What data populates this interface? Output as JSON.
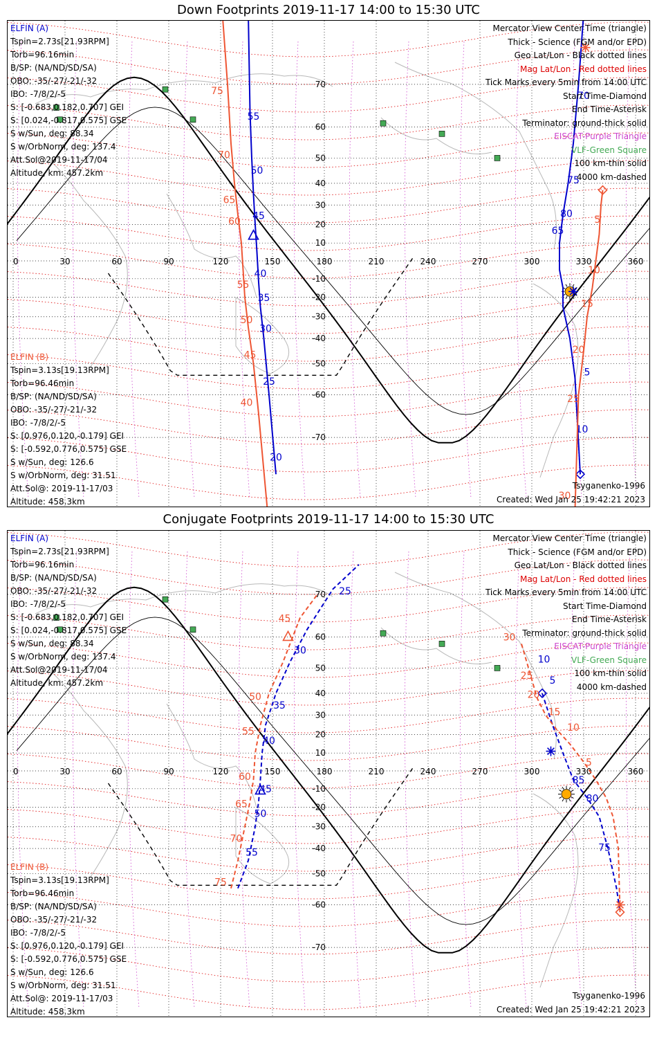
{
  "panels": [
    {
      "title": "Down Footprints 2019-11-17 14:00 to 15:30 UTC",
      "kind": "down"
    },
    {
      "title": "Conjugate Footprints 2019-11-17 14:00 to 15:30 UTC",
      "kind": "conjugate"
    }
  ],
  "elfin_a": {
    "name": "ELFIN (A)",
    "lines": [
      "Tspin=2.73s[21.93RPM]",
      "Torb=96.16min",
      "B/SP: (NA/ND/SD/SA)",
      "OBO: -35/-27/-21/-32",
      "IBO: -7/8/2/-5",
      "S: [-0.683,0.182,0.707] GEI",
      "S: [0.024,-0.817,0.575] GSE",
      "S w/Sun, deg: 88.34",
      "S w/OrbNorm, deg: 137.4",
      "Att.Sol@2019-11-17/04",
      "Altitude, km: 457.2km"
    ]
  },
  "elfin_b": {
    "name": "ELFIN (B)",
    "lines": [
      "Tspin=3.13s[19.13RPM]",
      "Torb=96.46min",
      "B/SP: (NA/ND/SD/SA)",
      "OBO: -35/-27/-21/-32",
      "IBO: -7/8/2/-5",
      "S: [0.976,0.120,-0.179] GEI",
      "S: [-0.592,0.776,0.575] GSE",
      "S w/Sun, deg: 126.6",
      "S w/OrbNorm, deg: 31.51",
      "Att.Sol@: 2019-11-17/03",
      "Altitude: 458.3km"
    ]
  },
  "legend": [
    {
      "text": "Mercator View Center Time (triangle)",
      "color": "#000000"
    },
    {
      "text": "Thick - Science (FGM and/or EPD)",
      "color": "#000000"
    },
    {
      "text": "Geo Lat/Lon - Black dotted lines",
      "color": "#000000"
    },
    {
      "text": "Mag Lat/Lon - Red dotted lines",
      "color": "#dd0000"
    },
    {
      "text": "Tick Marks every 5min from 14:00 UTC",
      "color": "#000000"
    },
    {
      "text": "Start Time-Diamond",
      "color": "#000000"
    },
    {
      "text": "End Time-Asterisk",
      "color": "#000000"
    },
    {
      "text": "Terminator: ground-thick solid",
      "color": "#000000"
    },
    {
      "text": "EISCAT-Purple Triangle",
      "color": "#cc44cc"
    },
    {
      "text": "VLF-Green Square",
      "color": "#44aa55"
    },
    {
      "text": "100 km-thin solid",
      "color": "#000000"
    },
    {
      "text": "4000 km-dashed",
      "color": "#000000"
    }
  ],
  "credit": "Tsyganenko-1996",
  "created": "Created: Wed Jan 25 19:42:21 2023",
  "colors": {
    "elfin_a": "#0000cc",
    "elfin_b": "#ee5533",
    "vlf": "#44aa55",
    "grid_geo": "#000000",
    "grid_mag": "#dd0000"
  },
  "chart_data": [
    {
      "type": "scatter",
      "title": "Down Footprints 2019-11-17 14:00 to 15:30 UTC",
      "projection": "mercator",
      "xlim": [
        0,
        360
      ],
      "ylim": [
        -80,
        80
      ],
      "lon_ticks": [
        0,
        30,
        60,
        90,
        120,
        150,
        180,
        210,
        240,
        270,
        300,
        330,
        360
      ],
      "lat_ticks": [
        70,
        60,
        50,
        40,
        30,
        20,
        10,
        -10,
        -20,
        -30,
        -40,
        -50,
        -60,
        -70
      ],
      "series": [
        {
          "name": "ELFIN (A)",
          "color": "#0000cc",
          "segments": [
            [
              [
                152,
                -76
              ],
              [
                148,
                -60
              ],
              [
                145,
                -40
              ],
              [
                143,
                -25
              ],
              [
                142,
                -12
              ],
              [
                141,
                5
              ],
              [
                140,
                20
              ],
              [
                139,
                35
              ],
              [
                138,
                50
              ],
              [
                137,
                64
              ],
              [
                136,
                80
              ]
            ],
            [
              [
                328,
                -76
              ],
              [
                325,
                -55
              ],
              [
                322,
                -40
              ],
              [
                318,
                -25
              ],
              [
                318,
                -15
              ],
              [
                316,
                -5
              ],
              [
                316,
                10
              ],
              [
                318,
                25
              ],
              [
                321,
                40
              ],
              [
                324,
                55
              ],
              [
                327,
                70
              ],
              [
                330,
                80
              ]
            ]
          ],
          "ticks": [
            {
              "label": "20",
              "lon": 152,
              "lat": -74
            },
            {
              "label": "25",
              "lon": 148,
              "lat": -57
            },
            {
              "label": "30",
              "lon": 146,
              "lat": -37
            },
            {
              "label": "35",
              "lon": 145,
              "lat": -22
            },
            {
              "label": "40",
              "lon": 143,
              "lat": -9
            },
            {
              "label": "45",
              "lon": 142,
              "lat": 23
            },
            {
              "label": "50",
              "lon": 141,
              "lat": 44
            },
            {
              "label": "55",
              "lon": 139,
              "lat": 62
            },
            {
              "label": "5",
              "lon": 332,
              "lat": -54
            },
            {
              "label": "10",
              "lon": 329,
              "lat": -69
            },
            {
              "label": "65",
              "lon": 315,
              "lat": 15
            },
            {
              "label": "80",
              "lon": 320,
              "lat": 24
            },
            {
              "label": "75",
              "lon": 324,
              "lat": 40
            },
            {
              "label": "70",
              "lon": 330,
              "lat": 67
            }
          ]
        },
        {
          "name": "ELFIN (B)",
          "color": "#ee5533",
          "segments": [
            [
              [
                147,
                -80
              ],
              [
                142,
                -65
              ],
              [
                139,
                -50
              ],
              [
                136,
                -35
              ],
              [
                134,
                -20
              ],
              [
                133,
                -5
              ],
              [
                132,
                10
              ],
              [
                130,
                25
              ],
              [
                128,
                40
              ],
              [
                126,
                55
              ],
              [
                124,
                70
              ],
              [
                121,
                80
              ]
            ],
            [
              [
                325,
                -80
              ],
              [
                327,
                -60
              ],
              [
                330,
                -45
              ],
              [
                332,
                -30
              ],
              [
                335,
                -15
              ],
              [
                337,
                0
              ],
              [
                339,
                15
              ],
              [
                340,
                30
              ],
              [
                341,
                37
              ]
            ]
          ],
          "ticks": [
            {
              "label": "40",
              "lon": 135,
              "lat": -63
            },
            {
              "label": "45",
              "lon": 137,
              "lat": -48
            },
            {
              "label": "50",
              "lon": 135,
              "lat": -33
            },
            {
              "label": "55",
              "lon": 133,
              "lat": -15
            },
            {
              "label": "60",
              "lon": 128,
              "lat": 20
            },
            {
              "label": "65",
              "lon": 125,
              "lat": 31
            },
            {
              "label": "70",
              "lon": 122,
              "lat": 50
            },
            {
              "label": "75",
              "lon": 118,
              "lat": 68
            },
            {
              "label": "30",
              "lon": 319,
              "lat": -79
            },
            {
              "label": "25",
              "lon": 324,
              "lat": -62
            },
            {
              "label": "20",
              "lon": 327,
              "lat": -46
            },
            {
              "label": "15",
              "lon": 332,
              "lat": -25
            },
            {
              "label": "10",
              "lon": 336,
              "lat": -7
            },
            {
              "label": "5",
              "lon": 338,
              "lat": 21
            }
          ]
        }
      ],
      "vlf_stations": [
        [
          25,
          65
        ],
        [
          88,
          69
        ],
        [
          27,
          62
        ],
        [
          104,
          62
        ],
        [
          214,
          61
        ],
        [
          248,
          58
        ],
        [
          280,
          50
        ]
      ]
    },
    {
      "type": "scatter",
      "title": "Conjugate Footprints 2019-11-17 14:00 to 15:30 UTC",
      "projection": "mercator",
      "xlim": [
        0,
        360
      ],
      "ylim": [
        -80,
        80
      ],
      "lon_ticks": [
        0,
        30,
        60,
        90,
        120,
        150,
        180,
        210,
        240,
        270,
        300,
        330,
        360
      ],
      "lat_ticks": [
        70,
        60,
        50,
        40,
        30,
        20,
        10,
        -10,
        -20,
        -30,
        -40,
        -50,
        -60,
        -70
      ],
      "series": [
        {
          "name": "ELFIN (A)",
          "color": "#0000cc",
          "segments": [
            [
              [
                130,
                -55
              ],
              [
                136,
                -45
              ],
              [
                140,
                -30
              ],
              [
                142,
                -17
              ],
              [
                143,
                -5
              ],
              [
                144,
                10
              ],
              [
                146,
                25
              ],
              [
                152,
                40
              ],
              [
                160,
                52
              ],
              [
                170,
                62
              ],
              [
                185,
                71
              ],
              [
                200,
                75
              ]
            ],
            [
              [
                306,
                40
              ],
              [
                312,
                25
              ],
              [
                318,
                10
              ],
              [
                324,
                -5
              ],
              [
                332,
                -15
              ],
              [
                339,
                -25
              ],
              [
                344,
                -40
              ],
              [
                349,
                -55
              ],
              [
                351,
                -62
              ]
            ]
          ],
          "ticks": [
            {
              "label": "55",
              "lon": 138,
              "lat": -43
            },
            {
              "label": "50",
              "lon": 143,
              "lat": -25
            },
            {
              "label": "45",
              "lon": 146,
              "lat": -12
            },
            {
              "label": "40",
              "lon": 148,
              "lat": 15
            },
            {
              "label": "35",
              "lon": 154,
              "lat": 33
            },
            {
              "label": "30",
              "lon": 166,
              "lat": 55
            },
            {
              "label": "25",
              "lon": 192,
              "lat": 70
            },
            {
              "label": "10",
              "lon": 307,
              "lat": 52
            },
            {
              "label": "5",
              "lon": 312,
              "lat": 44
            },
            {
              "label": "85",
              "lon": 327,
              "lat": -7
            },
            {
              "label": "80",
              "lon": 335,
              "lat": -17
            },
            {
              "label": "75",
              "lon": 342,
              "lat": -41
            }
          ]
        },
        {
          "name": "ELFIN (B)",
          "color": "#ee5533",
          "segments": [
            [
              [
                126,
                -55
              ],
              [
                130,
                -45
              ],
              [
                134,
                -30
              ],
              [
                137,
                -17
              ],
              [
                139,
                -5
              ],
              [
                140,
                10
              ],
              [
                143,
                25
              ],
              [
                148,
                40
              ],
              [
                156,
                52
              ],
              [
                166,
                65
              ],
              [
                176,
                70
              ]
            ],
            [
              [
                294,
                58
              ],
              [
                299,
                48
              ],
              [
                303,
                38
              ],
              [
                308,
                30
              ],
              [
                314,
                23
              ],
              [
                322,
                15
              ],
              [
                330,
                5
              ],
              [
                337,
                -5
              ],
              [
                343,
                -15
              ],
              [
                347,
                -25
              ],
              [
                350,
                -40
              ],
              [
                351,
                -62
              ]
            ]
          ],
          "ticks": [
            {
              "label": "75",
              "lon": 120,
              "lat": -54
            },
            {
              "label": "70",
              "lon": 129,
              "lat": -37
            },
            {
              "label": "65",
              "lon": 132,
              "lat": -20
            },
            {
              "label": "60",
              "lon": 134,
              "lat": -5
            },
            {
              "label": "55",
              "lon": 136,
              "lat": 20
            },
            {
              "label": "50",
              "lon": 140,
              "lat": 37
            },
            {
              "label": "45",
              "lon": 157,
              "lat": 64
            },
            {
              "label": "30",
              "lon": 287,
              "lat": 59
            },
            {
              "label": "25",
              "lon": 297,
              "lat": 46
            },
            {
              "label": "20",
              "lon": 301,
              "lat": 38
            },
            {
              "label": "15",
              "lon": 313,
              "lat": 30
            },
            {
              "label": "10",
              "lon": 324,
              "lat": 22
            },
            {
              "label": "5",
              "lon": 333,
              "lat": 3
            }
          ]
        }
      ],
      "vlf_stations": [
        [
          25,
          65
        ],
        [
          88,
          69
        ],
        [
          27,
          62
        ],
        [
          104,
          62
        ],
        [
          214,
          61
        ],
        [
          248,
          58
        ],
        [
          280,
          50
        ]
      ]
    }
  ]
}
